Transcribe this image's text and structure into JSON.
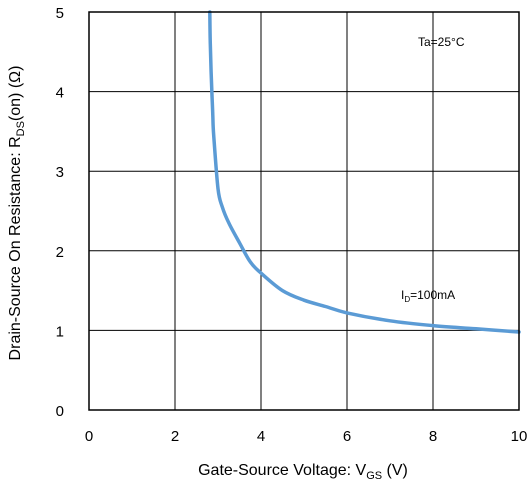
{
  "chart_data": {
    "type": "line",
    "title": "",
    "xlabel": {
      "main": "Gate-Source Voltage: V",
      "sub": "GS",
      "post": " (V)"
    },
    "ylabel": {
      "main": "Drain-Source On Resistance: R",
      "sub": "DS",
      "post": "(on) (Ω)"
    },
    "xlim": [
      0,
      10
    ],
    "ylim": [
      0,
      5
    ],
    "x_ticks": [
      0,
      2,
      4,
      6,
      8,
      10
    ],
    "y_ticks": [
      0,
      1,
      2,
      3,
      4,
      5
    ],
    "x_tick_labels": [
      "0",
      "2",
      "4",
      "6",
      "8",
      "10"
    ],
    "y_tick_labels": [
      "0",
      "1",
      "2",
      "3",
      "4",
      "5"
    ],
    "grid": true,
    "line_color": "#5b9bd5",
    "annotations": {
      "condition": "Ta=25°C",
      "series_label": {
        "main": "I",
        "sub": "D",
        "post": "=100mA"
      }
    },
    "series": [
      {
        "x": [
          2.81,
          2.82,
          2.84,
          2.86,
          2.88,
          2.9,
          3.0,
          3.1,
          3.25,
          3.5,
          3.75,
          4.0,
          4.5,
          5.0,
          5.5,
          6.0,
          7.0,
          8.0,
          9.0,
          10.0
        ],
        "y": [
          5.0,
          4.6,
          4.25,
          3.95,
          3.7,
          3.45,
          2.78,
          2.55,
          2.35,
          2.1,
          1.86,
          1.72,
          1.5,
          1.38,
          1.3,
          1.22,
          1.12,
          1.06,
          1.02,
          0.98
        ]
      }
    ]
  }
}
